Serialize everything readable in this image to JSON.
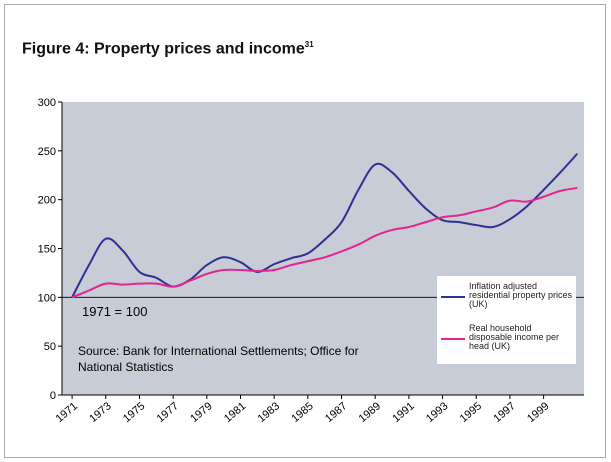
{
  "chart_data": {
    "type": "line",
    "title": "Figure 4: Property prices and income",
    "title_note": "31",
    "x": [
      1971,
      1972,
      1973,
      1974,
      1975,
      1976,
      1977,
      1978,
      1979,
      1980,
      1981,
      1982,
      1983,
      1984,
      1985,
      1986,
      1987,
      1988,
      1989,
      1990,
      1991,
      1992,
      1993,
      1994,
      1995,
      1996,
      1997,
      1998,
      1999,
      2000,
      2001
    ],
    "series": [
      {
        "name": "Inflation adjusted residential property prices (UK)",
        "color": "#2e3192",
        "values": [
          100,
          133,
          160,
          148,
          126,
          120,
          111,
          118,
          133,
          141,
          136,
          126,
          134,
          140,
          145,
          159,
          177,
          210,
          236,
          228,
          209,
          191,
          179,
          177,
          174,
          172,
          180,
          193,
          210,
          228,
          247
        ]
      },
      {
        "name": "Real household disposable income per head (UK)",
        "color": "#e4248f",
        "values": [
          100,
          107,
          114,
          113,
          114,
          114,
          111,
          117,
          124,
          128,
          128,
          127,
          128,
          133,
          137,
          141,
          147,
          154,
          163,
          169,
          172,
          177,
          182,
          184,
          188,
          192,
          199,
          198,
          203,
          209,
          212
        ]
      }
    ],
    "xlim": [
      1970.4,
      2001.4
    ],
    "xticks": [
      1971,
      1973,
      1975,
      1977,
      1979,
      1981,
      1983,
      1985,
      1987,
      1989,
      1991,
      1993,
      1995,
      1997,
      1999
    ],
    "ylim": [
      0,
      300
    ],
    "yticks": [
      0,
      50,
      100,
      150,
      200,
      250,
      300
    ],
    "reference_line": 100,
    "annotations": [
      "1971 = 100",
      "Source: Bank for International Settlements; Office for",
      "National Statistics"
    ],
    "plot_background": "#c8ccd6",
    "legend": "lower right"
  }
}
